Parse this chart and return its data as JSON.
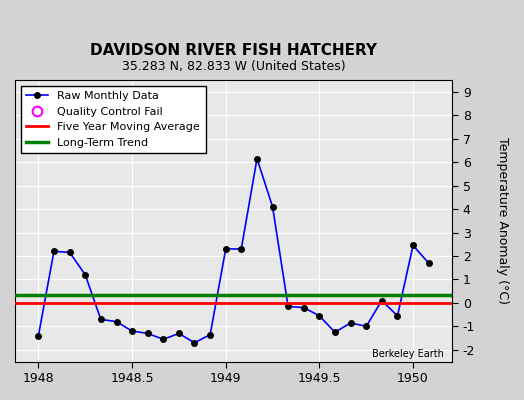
{
  "title": "DAVIDSON RIVER FISH HATCHERY",
  "subtitle": "35.283 N, 82.833 W (United States)",
  "watermark": "Berkeley Earth",
  "ylabel": "Temperature Anomaly (°C)",
  "ylim": [
    -2.5,
    9.5
  ],
  "yticks": [
    -2,
    -1,
    0,
    1,
    2,
    3,
    4,
    5,
    6,
    7,
    8,
    9
  ],
  "xlim": [
    1947.875,
    1950.21
  ],
  "xticks": [
    1948.0,
    1948.5,
    1949.0,
    1949.5,
    1950.0
  ],
  "xticklabels": [
    "1948",
    "1948.5",
    "1949",
    "1949.5",
    "1950"
  ],
  "background_color": "#d3d3d3",
  "plot_bg_color": "#e8e8e8",
  "grid_color": "white",
  "long_term_trend_y": 0.35,
  "five_year_avg_y": 0.0,
  "raw_x": [
    1948.0,
    1948.083,
    1948.167,
    1948.25,
    1948.333,
    1948.417,
    1948.5,
    1948.583,
    1948.667,
    1948.75,
    1948.833,
    1948.917,
    1949.0,
    1949.083,
    1949.167,
    1949.25,
    1949.333,
    1949.417,
    1949.5,
    1949.583,
    1949.667,
    1949.75,
    1949.833,
    1949.917,
    1950.0,
    1950.083
  ],
  "raw_y": [
    -1.4,
    2.2,
    2.15,
    1.2,
    -0.7,
    -0.8,
    -1.2,
    -1.3,
    -1.55,
    -1.3,
    -1.7,
    -1.35,
    2.3,
    2.3,
    6.15,
    4.1,
    -0.15,
    -0.2,
    -0.55,
    -1.25,
    -0.85,
    -1.0,
    0.1,
    -0.55,
    2.45,
    1.7
  ],
  "line_color": "blue",
  "marker_color": "black",
  "five_year_color": "red",
  "trend_color": "green",
  "legend_labels": [
    "Raw Monthly Data",
    "Quality Control Fail",
    "Five Year Moving Average",
    "Long-Term Trend"
  ]
}
